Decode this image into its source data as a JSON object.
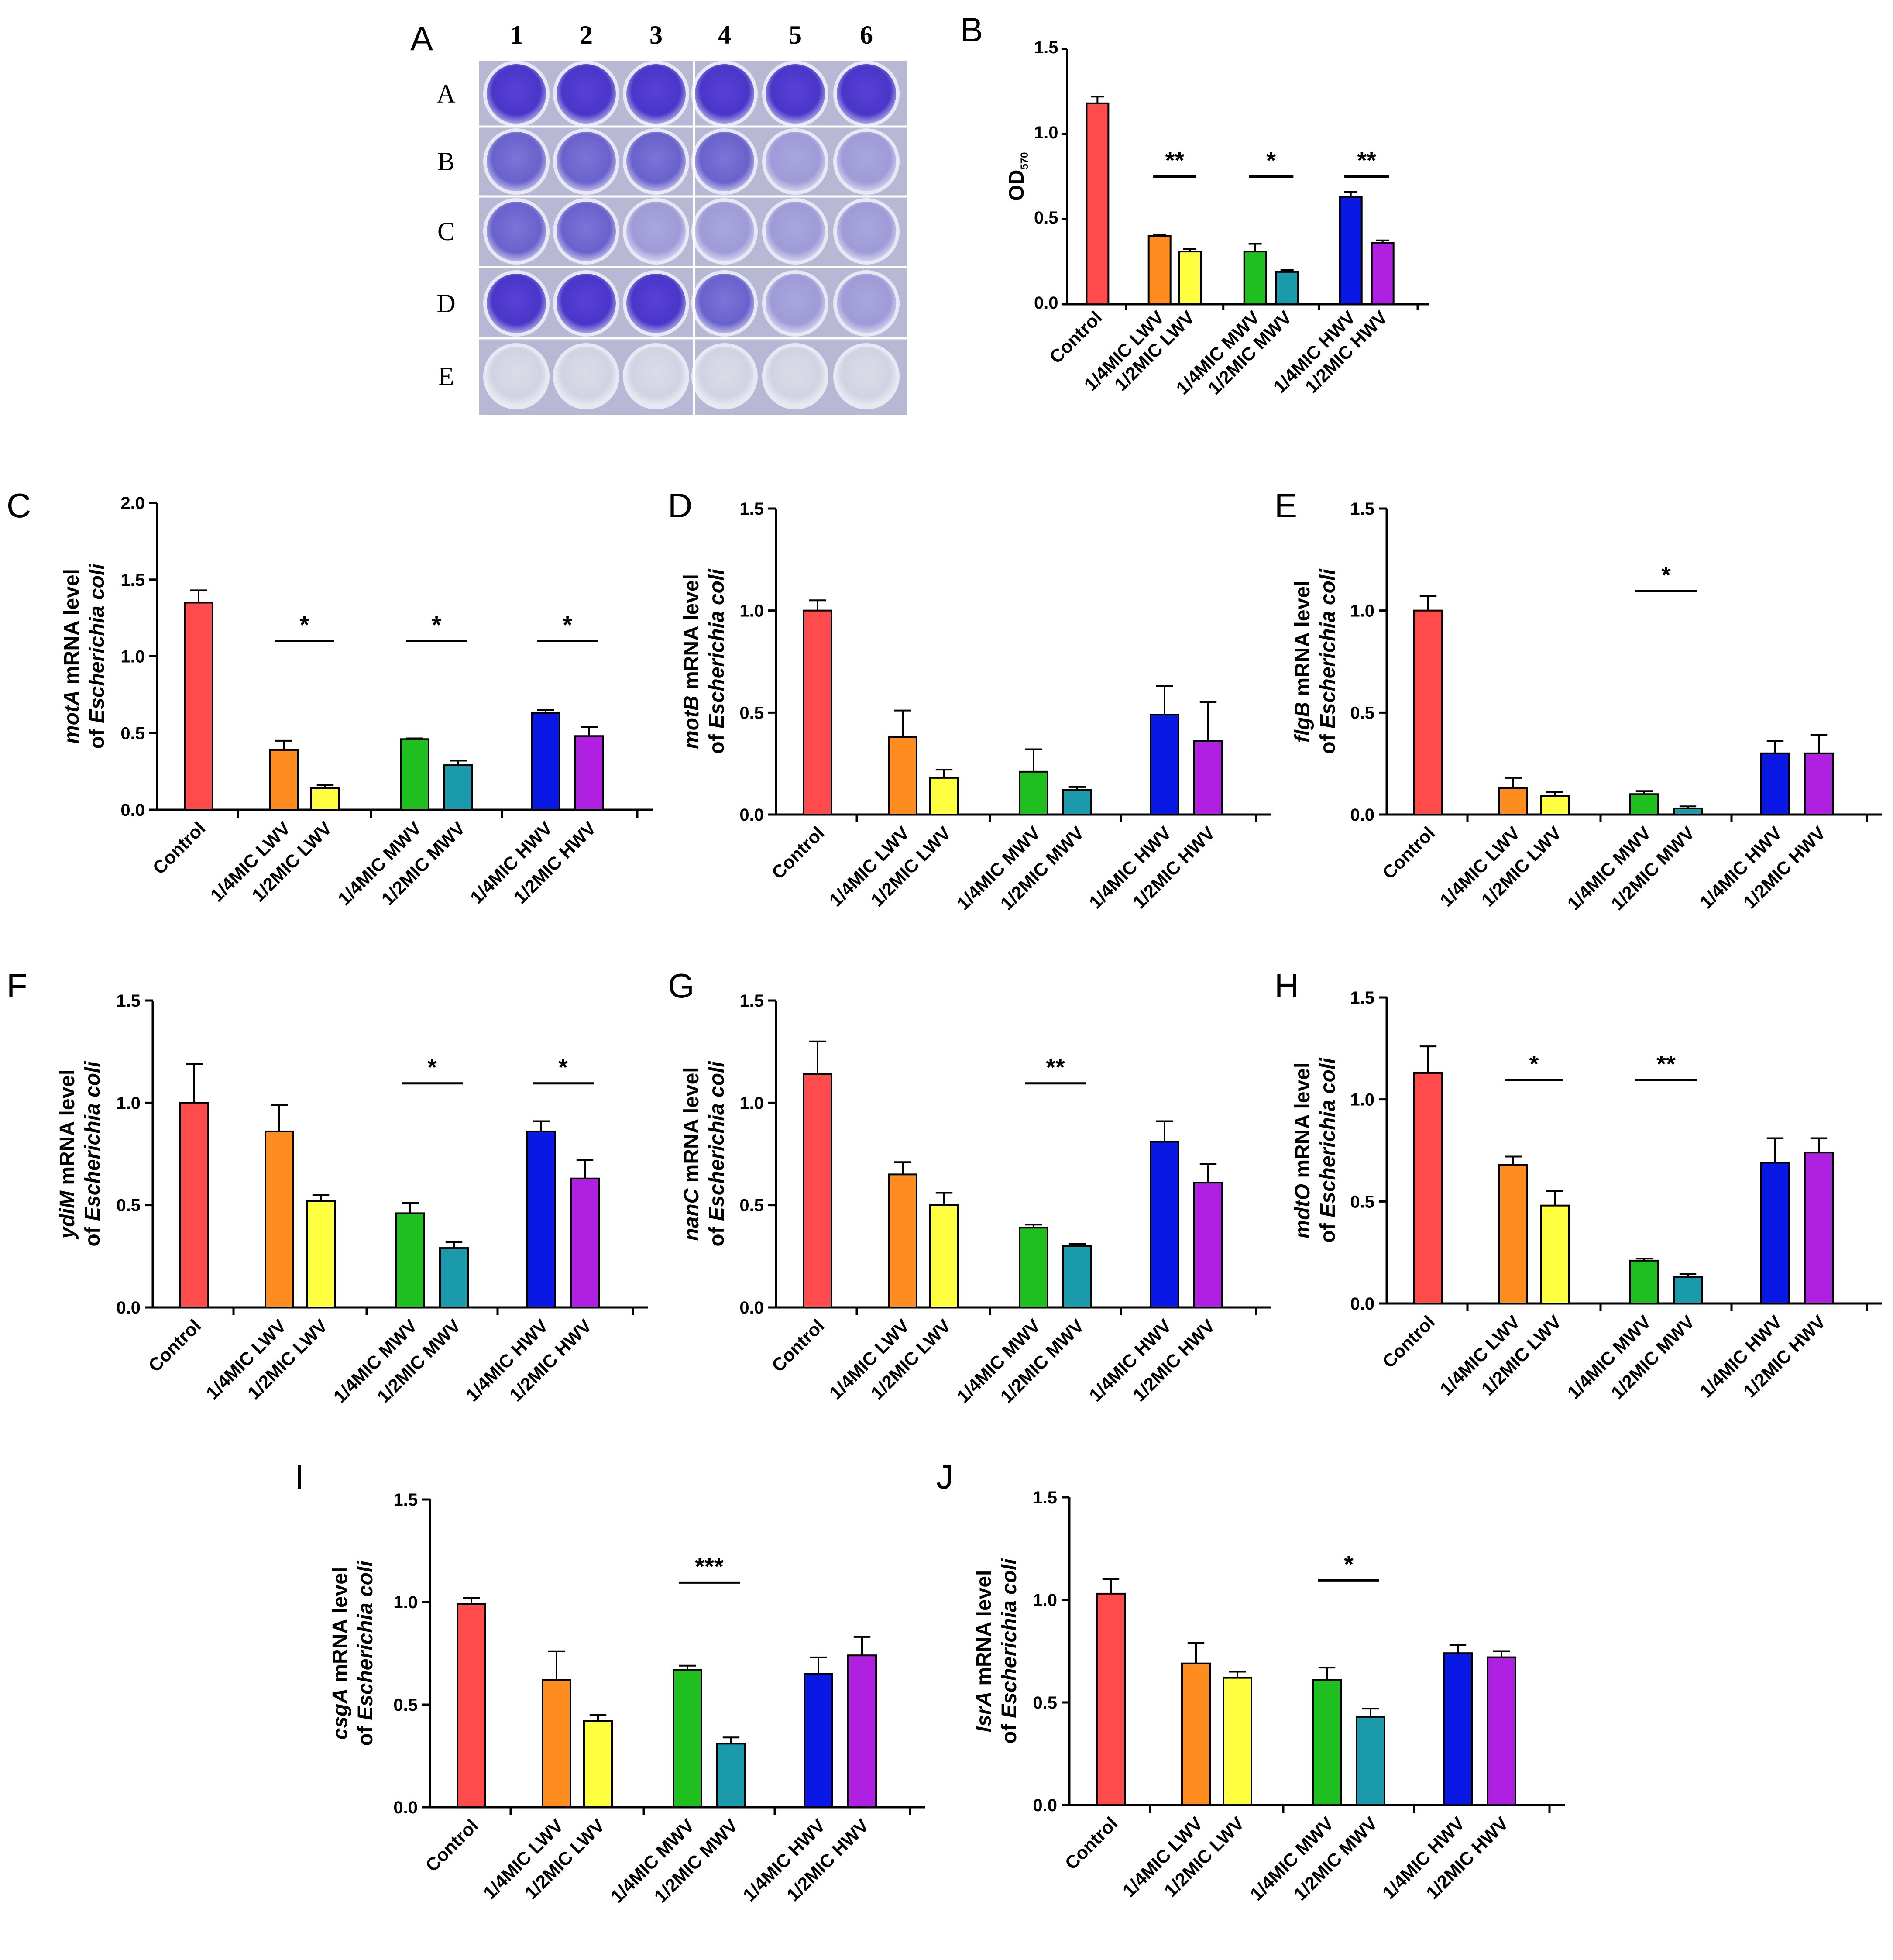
{
  "colors": {
    "Control": "#ff4b4b",
    "1/4MIC LWV": "#ff8c1f",
    "1/2MIC LWV": "#ffff40",
    "1/4MIC MWV": "#1fbf1f",
    "1/2MIC MWV": "#1a9aaa",
    "1/4MIC HWV": "#0a18e6",
    "1/2MIC HWV": "#b020e0"
  },
  "plate": {
    "panel_label": "A",
    "columns": [
      "1",
      "2",
      "3",
      "4",
      "5",
      "6"
    ],
    "rows": [
      "A",
      "B",
      "C",
      "D",
      "E"
    ]
  },
  "chart_data": [
    {
      "panel": "B",
      "type": "bar",
      "categories": [
        "Control",
        "1/4MIC LWV",
        "1/2MIC LWV",
        "1/4MIC MWV",
        "1/2MIC MWV",
        "1/4MIC HWV",
        "1/2MIC HWV"
      ],
      "values": [
        1.18,
        0.4,
        0.31,
        0.31,
        0.19,
        0.63,
        0.36
      ],
      "errors": [
        0.04,
        0.01,
        0.015,
        0.045,
        0.01,
        0.03,
        0.015
      ],
      "ylabel_main": "OD",
      "ylabel_sub": "570",
      "ylim": [
        0,
        1.5
      ],
      "yticks": [
        "0.0",
        "0.5",
        "1.0",
        "1.5"
      ],
      "significance": [
        {
          "pair": [
            1,
            2
          ],
          "label": "**"
        },
        {
          "pair": [
            3,
            4
          ],
          "label": "*"
        },
        {
          "pair": [
            5,
            6
          ],
          "label": "**"
        }
      ]
    },
    {
      "panel": "C",
      "type": "bar",
      "categories": [
        "Control",
        "1/4MIC LWV",
        "1/2MIC LWV",
        "1/4MIC MWV",
        "1/2MIC MWV",
        "1/4MIC HWV",
        "1/2MIC HWV"
      ],
      "values": [
        1.35,
        0.39,
        0.14,
        0.46,
        0.29,
        0.63,
        0.48
      ],
      "errors": [
        0.08,
        0.06,
        0.02,
        0.005,
        0.03,
        0.02,
        0.06
      ],
      "gene": "motA",
      "ylabel_rest": " mRNA level",
      "ylabel_line2": "of ",
      "organism": "Escherichia coli",
      "ylim": [
        0,
        2.0
      ],
      "yticks": [
        "0.0",
        "0.5",
        "1.0",
        "1.5",
        "2.0"
      ],
      "significance": [
        {
          "pair": [
            1,
            2
          ],
          "label": "*"
        },
        {
          "pair": [
            3,
            4
          ],
          "label": "*"
        },
        {
          "pair": [
            5,
            6
          ],
          "label": "*"
        }
      ]
    },
    {
      "panel": "D",
      "type": "bar",
      "categories": [
        "Control",
        "1/4MIC LWV",
        "1/2MIC LWV",
        "1/4MIC MWV",
        "1/2MIC MWV",
        "1/4MIC HWV",
        "1/2MIC HWV"
      ],
      "values": [
        1.0,
        0.38,
        0.18,
        0.21,
        0.12,
        0.49,
        0.36
      ],
      "errors": [
        0.05,
        0.13,
        0.04,
        0.11,
        0.015,
        0.14,
        0.19
      ],
      "gene": "motB",
      "ylabel_rest": " mRNA level",
      "ylabel_line2": "of ",
      "organism": "Escherichia coli",
      "ylim": [
        0,
        1.5
      ],
      "yticks": [
        "0.0",
        "0.5",
        "1.0",
        "1.5"
      ],
      "significance": []
    },
    {
      "panel": "E",
      "type": "bar",
      "categories": [
        "Control",
        "1/4MIC LWV",
        "1/2MIC LWV",
        "1/4MIC MWV",
        "1/2MIC MWV",
        "1/4MIC HWV",
        "1/2MIC HWV"
      ],
      "values": [
        1.0,
        0.13,
        0.09,
        0.1,
        0.03,
        0.3,
        0.3
      ],
      "errors": [
        0.07,
        0.05,
        0.02,
        0.015,
        0.01,
        0.06,
        0.09
      ],
      "gene": "flgB",
      "ylabel_rest": " mRNA level",
      "ylabel_line2": "of ",
      "organism": "Escherichia coli",
      "ylim": [
        0,
        1.5
      ],
      "yticks": [
        "0.0",
        "0.5",
        "1.0",
        "1.5"
      ],
      "significance": [
        {
          "pair": [
            3,
            4
          ],
          "label": "*"
        }
      ]
    },
    {
      "panel": "F",
      "type": "bar",
      "categories": [
        "Control",
        "1/4MIC LWV",
        "1/2MIC LWV",
        "1/4MIC MWV",
        "1/2MIC MWV",
        "1/4MIC HWV",
        "1/2MIC HWV"
      ],
      "values": [
        1.0,
        0.86,
        0.52,
        0.46,
        0.29,
        0.86,
        0.63
      ],
      "errors": [
        0.19,
        0.13,
        0.03,
        0.05,
        0.03,
        0.05,
        0.09
      ],
      "gene": "ydiM",
      "ylabel_rest": " mRNA level",
      "ylabel_line2": "of ",
      "organism": "Escherichia coli",
      "ylim": [
        0,
        1.5
      ],
      "yticks": [
        "0.0",
        "0.5",
        "1.0",
        "1.5"
      ],
      "significance": [
        {
          "pair": [
            3,
            4
          ],
          "label": "*"
        },
        {
          "pair": [
            5,
            6
          ],
          "label": "*"
        }
      ]
    },
    {
      "panel": "G",
      "type": "bar",
      "categories": [
        "Control",
        "1/4MIC LWV",
        "1/2MIC LWV",
        "1/4MIC MWV",
        "1/2MIC MWV",
        "1/4MIC HWV",
        "1/2MIC HWV"
      ],
      "values": [
        1.14,
        0.65,
        0.5,
        0.39,
        0.3,
        0.81,
        0.61
      ],
      "errors": [
        0.16,
        0.06,
        0.06,
        0.015,
        0.01,
        0.1,
        0.09
      ],
      "gene": "nanC",
      "ylabel_rest": " mRNA level",
      "ylabel_line2": "of ",
      "organism": "Escherichia coli",
      "ylim": [
        0,
        1.5
      ],
      "yticks": [
        "0.0",
        "0.5",
        "1.0",
        "1.5"
      ],
      "significance": [
        {
          "pair": [
            3,
            4
          ],
          "label": "**"
        }
      ]
    },
    {
      "panel": "H",
      "type": "bar",
      "categories": [
        "Control",
        "1/4MIC LWV",
        "1/2MIC LWV",
        "1/4MIC MWV",
        "1/2MIC MWV",
        "1/4MIC HWV",
        "1/2MIC HWV"
      ],
      "values": [
        1.13,
        0.68,
        0.48,
        0.21,
        0.13,
        0.69,
        0.74
      ],
      "errors": [
        0.13,
        0.04,
        0.07,
        0.01,
        0.015,
        0.12,
        0.07
      ],
      "gene": "mdtO",
      "ylabel_rest": " mRNA level",
      "ylabel_line2": "of ",
      "organism": "Escherichia coli",
      "ylim": [
        0,
        1.5
      ],
      "yticks": [
        "0.0",
        "0.5",
        "1.0",
        "1.5"
      ],
      "significance": [
        {
          "pair": [
            1,
            2
          ],
          "label": "*"
        },
        {
          "pair": [
            3,
            4
          ],
          "label": "**"
        }
      ]
    },
    {
      "panel": "I",
      "type": "bar",
      "categories": [
        "Control",
        "1/4MIC LWV",
        "1/2MIC LWV",
        "1/4MIC MWV",
        "1/2MIC MWV",
        "1/4MIC HWV",
        "1/2MIC HWV"
      ],
      "values": [
        0.99,
        0.62,
        0.42,
        0.67,
        0.31,
        0.65,
        0.74
      ],
      "errors": [
        0.03,
        0.14,
        0.03,
        0.02,
        0.03,
        0.08,
        0.09
      ],
      "gene": "csgA",
      "ylabel_rest": " mRNA level",
      "ylabel_line2": "of ",
      "organism": "Escherichia coli",
      "ylim": [
        0,
        1.5
      ],
      "yticks": [
        "0.0",
        "0.5",
        "1.0",
        "1.5"
      ],
      "significance": [
        {
          "pair": [
            3,
            4
          ],
          "label": "***"
        }
      ]
    },
    {
      "panel": "J",
      "type": "bar",
      "categories": [
        "Control",
        "1/4MIC LWV",
        "1/2MIC LWV",
        "1/4MIC MWV",
        "1/2MIC MWV",
        "1/4MIC HWV",
        "1/2MIC HWV"
      ],
      "values": [
        1.03,
        0.69,
        0.62,
        0.61,
        0.43,
        0.74,
        0.72
      ],
      "errors": [
        0.07,
        0.1,
        0.03,
        0.06,
        0.04,
        0.04,
        0.03
      ],
      "gene": "lsrA",
      "ylabel_rest": " mRNA level",
      "ylabel_line2": "of ",
      "organism": "Escherichia coli",
      "ylim": [
        0,
        1.5
      ],
      "yticks": [
        "0.0",
        "0.5",
        "1.0",
        "1.5"
      ],
      "significance": [
        {
          "pair": [
            3,
            4
          ],
          "label": "*"
        }
      ]
    }
  ]
}
